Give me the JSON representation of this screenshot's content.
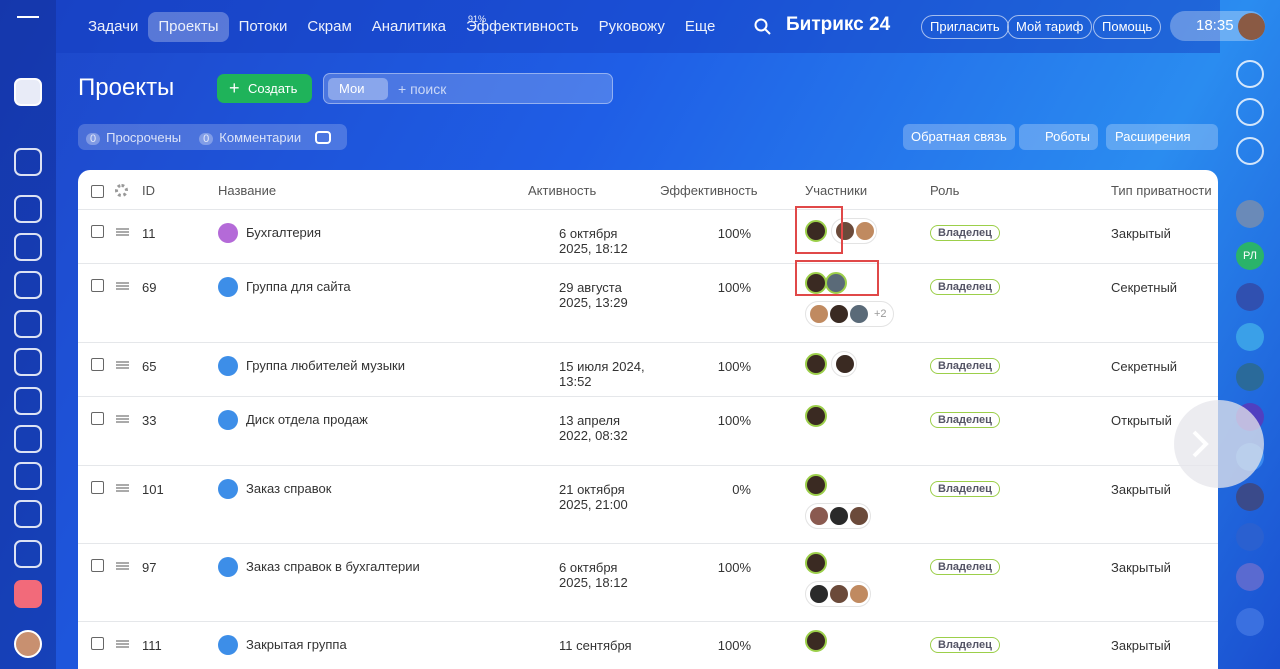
{
  "topnav": {
    "items": [
      "Задачи",
      "Проекты",
      "Потоки",
      "Скрам",
      "Аналитика",
      "Эффективность",
      "Руковожу",
      "Еще"
    ],
    "efficiency_badge": "91%",
    "brand": "Битрикс 24",
    "buttons": [
      "Пригласить",
      "Мой тариф",
      "Помощь"
    ],
    "time": "18:35"
  },
  "header": {
    "title": "Проекты",
    "create": "Создать",
    "filter_tag": "Мои",
    "search_placeholder": "+ поиск"
  },
  "counters": [
    {
      "count": "0",
      "label": "Просрочены"
    },
    {
      "count": "0",
      "label": "Комментарии"
    }
  ],
  "actions": [
    "Обратная связь",
    "Роботы",
    "Расширения"
  ],
  "right_sidebar": {
    "initials": "РЛ"
  },
  "table": {
    "columns": [
      "ID",
      "Название",
      "Активность",
      "Эффективность",
      "Участники",
      "Роль",
      "Тип приватности"
    ],
    "rows": [
      {
        "id": "11",
        "name": "Бухгалтерия",
        "activity": "6 октября 2025, 18:12",
        "efficiency": "100%",
        "role": "Владелец",
        "privacy": "Закрытый"
      },
      {
        "id": "69",
        "name": "Группа для сайта",
        "activity": "29 августа 2025, 13:29",
        "efficiency": "100%",
        "role": "Владелец",
        "privacy": "Секретный",
        "more": "+2"
      },
      {
        "id": "65",
        "name": "Группа любителей музыки",
        "activity": "15 июля 2024, 13:52",
        "efficiency": "100%",
        "role": "Владелец",
        "privacy": "Секретный"
      },
      {
        "id": "33",
        "name": "Диск отдела продаж",
        "activity": "13 апреля 2022, 08:32",
        "efficiency": "100%",
        "role": "Владелец",
        "privacy": "Открытый"
      },
      {
        "id": "101",
        "name": "Заказ справок",
        "activity": "21 октября 2025, 21:00",
        "efficiency": "0%",
        "role": "Владелец",
        "privacy": "Закрытый"
      },
      {
        "id": "97",
        "name": "Заказ справок в бухгалтерии",
        "activity": "6 октября 2025, 18:12",
        "efficiency": "100%",
        "role": "Владелец",
        "privacy": "Закрытый"
      },
      {
        "id": "111",
        "name": "Закрытая группа",
        "activity": "11 сентября",
        "efficiency": "100%",
        "role": "Владелец",
        "privacy": "Закрытый"
      }
    ]
  }
}
